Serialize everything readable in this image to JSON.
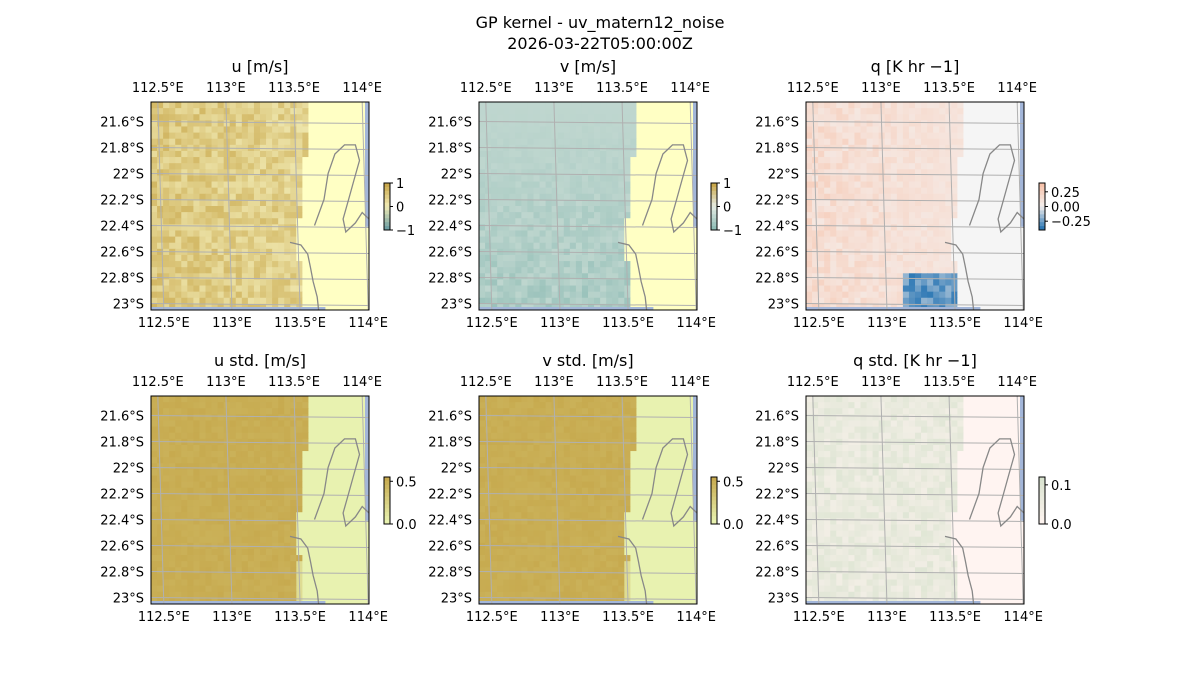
{
  "figure": {
    "title": "GP kernel - uv_matern12_noise",
    "subtitle": "2026-03-22T05:00:00Z"
  },
  "axes_common": {
    "lon_ticks": [
      "112.5°E",
      "113°E",
      "113.5°E",
      "114°E"
    ],
    "lon_values": [
      112.5,
      113.0,
      113.5,
      114.0
    ],
    "lat_ticks": [
      "21.6°S",
      "21.8°S",
      "22°S",
      "22.2°S",
      "22.4°S",
      "22.6°S",
      "22.8°S",
      "23°S"
    ],
    "lat_values": [
      -21.6,
      -21.8,
      -22.0,
      -22.2,
      -22.4,
      -22.6,
      -22.8,
      -23.0
    ],
    "xlim": [
      112.45,
      114.05
    ],
    "ylim": [
      -23.05,
      -21.45
    ],
    "grid": true,
    "land_color": "#ffffc4",
    "coast_color": "#888888"
  },
  "chart_data": [
    {
      "type": "heatmap",
      "title": "u [m/s]",
      "colorbar": {
        "ticks": [
          "1",
          "0",
          "−1"
        ],
        "values": [
          1,
          0,
          -1
        ],
        "range": [
          -1,
          1
        ]
      },
      "palette": {
        "high": "#c9a84c",
        "mid": "#f2ecb6",
        "low": "#6f9fa3"
      }
    },
    {
      "type": "heatmap",
      "title": "v [m/s]",
      "colorbar": {
        "ticks": [
          "1",
          "0",
          "−1"
        ],
        "values": [
          1,
          0,
          -1
        ],
        "range": [
          -1,
          1
        ]
      },
      "palette": {
        "high": "#c9a84c",
        "mid": "#e6ece4",
        "low": "#8fbcb5"
      }
    },
    {
      "type": "heatmap",
      "title": "q [K hr −1]",
      "colorbar": {
        "ticks": [
          "0.25",
          "0.00",
          "−0.25"
        ],
        "values": [
          0.25,
          0,
          -0.25
        ],
        "range": [
          -0.4,
          0.4
        ]
      },
      "palette": {
        "high": "#f7c3ab",
        "mid": "#f5f0ee",
        "low": "#2f79b5"
      }
    },
    {
      "type": "heatmap",
      "title": "u std. [m/s]",
      "colorbar": {
        "ticks": [
          "0.5",
          "0.0"
        ],
        "values": [
          0.5,
          0.0
        ],
        "range": [
          0,
          0.55
        ]
      },
      "palette": {
        "high": "#c7aa4f",
        "low": "#e8f2b0"
      }
    },
    {
      "type": "heatmap",
      "title": "v std. [m/s]",
      "colorbar": {
        "ticks": [
          "0.5",
          "0.0"
        ],
        "values": [
          0.5,
          0.0
        ],
        "range": [
          0,
          0.55
        ]
      },
      "palette": {
        "high": "#c7aa4f",
        "low": "#e8f2b0"
      }
    },
    {
      "type": "heatmap",
      "title": "q std. [K hr −1]",
      "colorbar": {
        "ticks": [
          "0.1",
          "0.0"
        ],
        "values": [
          0.1,
          0.0
        ],
        "range": [
          0,
          0.12
        ]
      },
      "palette": {
        "high": "#d9e3cf",
        "low": "#fdf3ef"
      }
    }
  ]
}
